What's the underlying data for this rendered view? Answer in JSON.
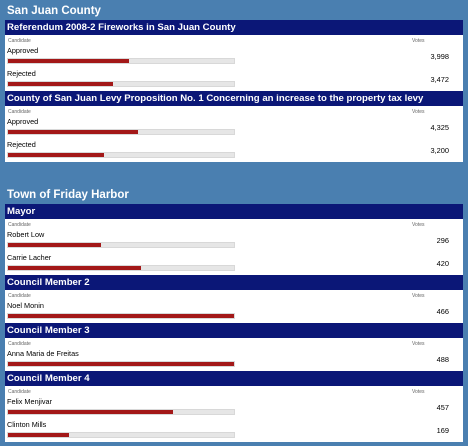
{
  "sections": [
    {
      "title": "San Juan County",
      "races": [
        {
          "title": "Referendum 2008-2 Fireworks in San Juan County",
          "candidate_header": "Candidate",
          "votes_header": "Votes",
          "choices": [
            {
              "name": "Approved",
              "votes": "3,998",
              "share": 0.535
            },
            {
              "name": "Rejected",
              "votes": "3,472",
              "share": 0.465
            }
          ]
        },
        {
          "title": "County of San Juan Levy Proposition No. 1 Concerning an increase to the property tax levy",
          "candidate_header": "Candidate",
          "votes_header": "Votes",
          "choices": [
            {
              "name": "Approved",
              "votes": "4,325",
              "share": 0.575
            },
            {
              "name": "Rejected",
              "votes": "3,200",
              "share": 0.425
            }
          ]
        }
      ]
    },
    {
      "title": "Town of Friday Harbor",
      "races": [
        {
          "title": "Mayor",
          "candidate_header": "Candidate",
          "votes_header": "Votes",
          "choices": [
            {
              "name": "Robert Low",
              "votes": "296",
              "share": 0.413
            },
            {
              "name": "Carrie Lacher",
              "votes": "420",
              "share": 0.587
            }
          ]
        },
        {
          "title": "Council Member 2",
          "candidate_header": "Candidate",
          "votes_header": "Votes",
          "choices": [
            {
              "name": "Noel Monin",
              "votes": "466",
              "share": 1.0
            }
          ]
        },
        {
          "title": "Council Member 3",
          "candidate_header": "Candidate",
          "votes_header": "Votes",
          "choices": [
            {
              "name": "Anna Maria de Freitas",
              "votes": "488",
              "share": 1.0
            }
          ]
        },
        {
          "title": "Council Member 4",
          "candidate_header": "Candidate",
          "votes_header": "Votes",
          "choices": [
            {
              "name": "Felix Menjivar",
              "votes": "457",
              "share": 0.73
            },
            {
              "name": "Clinton Mills",
              "votes": "169",
              "share": 0.27
            }
          ]
        }
      ]
    }
  ],
  "colors": {
    "section_bg": "#4a7fb0",
    "race_title_bg": "#0b1777",
    "bar_fill": "#a31818",
    "bar_track": "#e6e6e6"
  }
}
